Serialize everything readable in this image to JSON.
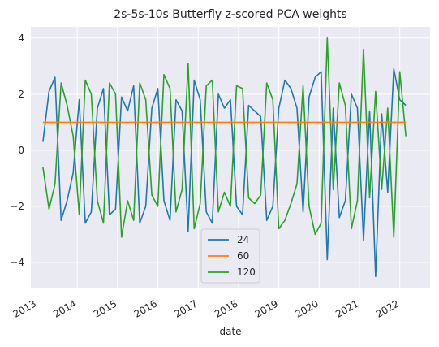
{
  "chart_data": {
    "type": "line",
    "title": "2s-5s-10s Butterfly z-scored PCA weights",
    "xlabel": "date",
    "ylabel": "",
    "xlim": [
      2012.85,
      2022.75
    ],
    "ylim": [
      -4.9,
      4.4
    ],
    "xticks": [
      {
        "value": 2013,
        "label": "2013"
      },
      {
        "value": 2014,
        "label": "2014"
      },
      {
        "value": 2015,
        "label": "2015"
      },
      {
        "value": 2016,
        "label": "2016"
      },
      {
        "value": 2017,
        "label": "2017"
      },
      {
        "value": 2018,
        "label": "2018"
      },
      {
        "value": 2019,
        "label": "2019"
      },
      {
        "value": 2020,
        "label": "2020"
      },
      {
        "value": 2021,
        "label": "2021"
      },
      {
        "value": 2022,
        "label": "2022"
      }
    ],
    "yticks": [
      {
        "value": 4,
        "label": "4"
      },
      {
        "value": 2,
        "label": "2"
      },
      {
        "value": 0,
        "label": "0"
      },
      {
        "value": -2,
        "label": "−2"
      },
      {
        "value": -4,
        "label": "−4"
      }
    ],
    "grid": true,
    "legend_position": "lower-center",
    "x": [
      2013.15,
      2013.3,
      2013.45,
      2013.6,
      2013.75,
      2013.9,
      2014.05,
      2014.2,
      2014.35,
      2014.5,
      2014.65,
      2014.8,
      2014.95,
      2015.1,
      2015.25,
      2015.4,
      2015.55,
      2015.7,
      2015.85,
      2016.0,
      2016.15,
      2016.3,
      2016.45,
      2016.6,
      2016.75,
      2016.9,
      2017.05,
      2017.2,
      2017.35,
      2017.5,
      2017.65,
      2017.8,
      2017.95,
      2018.1,
      2018.25,
      2018.4,
      2018.55,
      2018.7,
      2018.85,
      2019.0,
      2019.15,
      2019.3,
      2019.45,
      2019.6,
      2019.75,
      2019.9,
      2020.05,
      2020.2,
      2020.35,
      2020.5,
      2020.65,
      2020.8,
      2020.95,
      2021.1,
      2021.25,
      2021.4,
      2021.55,
      2021.7,
      2021.85,
      2022.0,
      2022.15
    ],
    "series": [
      {
        "name": "24",
        "color": "#1f77b4",
        "values": [
          0.3,
          2.1,
          2.6,
          -2.5,
          -1.8,
          -0.8,
          1.8,
          -2.6,
          -2.2,
          1.5,
          2.2,
          -2.3,
          -2.1,
          1.9,
          1.4,
          2.3,
          -2.6,
          -2.0,
          1.5,
          2.2,
          -1.8,
          -2.5,
          1.8,
          1.4,
          -2.9,
          2.5,
          1.8,
          -2.2,
          -2.6,
          2.0,
          1.5,
          1.8,
          -2.0,
          -2.3,
          1.6,
          1.4,
          1.2,
          -2.5,
          -2.0,
          1.5,
          2.5,
          2.2,
          1.5,
          -2.2,
          1.9,
          2.6,
          2.8,
          -3.9,
          1.5,
          -2.4,
          -1.8,
          2.0,
          1.5,
          -3.2,
          1.4,
          -4.5,
          1.3,
          -1.5,
          2.9,
          1.8,
          1.6
        ]
      },
      {
        "name": "60",
        "color": "#ff7f0e",
        "values": [
          1.0,
          1.0,
          1.0,
          1.0,
          1.0,
          1.0,
          1.0,
          1.0,
          1.0,
          1.0,
          1.0,
          1.0,
          1.0,
          1.0,
          1.0,
          1.0,
          1.0,
          1.0,
          1.0,
          1.0,
          1.0,
          1.0,
          1.0,
          1.0,
          1.0,
          1.0,
          1.0,
          1.0,
          1.0,
          1.0,
          1.0,
          1.0,
          1.0,
          1.0,
          1.0,
          1.0,
          1.0,
          1.0,
          1.0,
          1.0,
          1.0,
          1.0,
          1.0,
          1.0,
          1.0,
          1.0,
          1.0,
          1.0,
          1.0,
          1.0,
          1.0,
          1.0,
          1.0,
          1.0,
          1.0,
          1.0,
          1.0,
          1.0,
          1.0,
          1.0,
          1.0
        ]
      },
      {
        "name": "120",
        "color": "#2ca02c",
        "values": [
          -0.6,
          -2.1,
          -1.2,
          2.4,
          1.6,
          0.5,
          -2.3,
          2.5,
          2.0,
          -1.8,
          -2.6,
          2.4,
          2.0,
          -3.1,
          -1.8,
          -2.5,
          2.4,
          1.8,
          -1.6,
          -2.0,
          2.7,
          2.2,
          -2.2,
          -1.4,
          3.1,
          -2.8,
          -1.9,
          2.3,
          2.5,
          -2.2,
          -1.5,
          -2.0,
          2.3,
          2.2,
          -1.7,
          -1.9,
          -1.6,
          2.4,
          1.8,
          -2.8,
          -2.5,
          -1.9,
          -1.2,
          2.3,
          -2.0,
          -3.0,
          -2.6,
          4.0,
          -1.4,
          2.4,
          1.6,
          -2.8,
          -1.8,
          3.6,
          -1.7,
          2.1,
          -1.4,
          1.5,
          -3.1,
          2.8,
          0.5
        ]
      }
    ]
  }
}
